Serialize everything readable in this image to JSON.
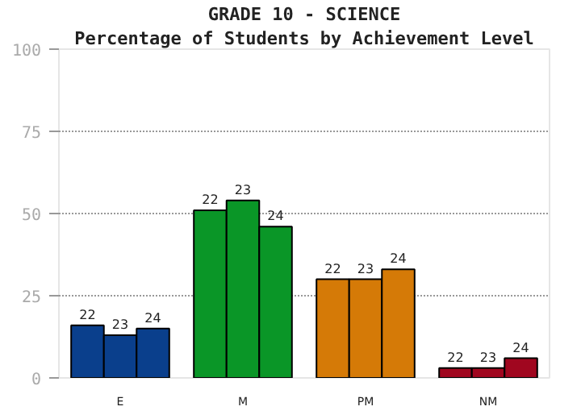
{
  "chart_data": {
    "type": "bar",
    "title": "GRADE 10 - SCIENCE",
    "subtitle": "Percentage of Students by Achievement Level",
    "categories": [
      "E",
      "M",
      "PM",
      "NM"
    ],
    "series": [
      {
        "name": "22",
        "colors": [
          "#0a3f8c",
          "#0a9627",
          "#d57a07",
          "#a0061f"
        ],
        "values": [
          16,
          51,
          30,
          3
        ]
      },
      {
        "name": "23",
        "colors": [
          "#0a3f8c",
          "#0a9627",
          "#d57a07",
          "#a0061f"
        ],
        "values": [
          13,
          54,
          30,
          3
        ]
      },
      {
        "name": "24",
        "colors": [
          "#0a3f8c",
          "#0a9627",
          "#d57a07",
          "#a0061f"
        ],
        "values": [
          15,
          46,
          33,
          6
        ]
      }
    ],
    "ylim": [
      0,
      100
    ],
    "yticks": [
      0,
      25,
      50,
      75,
      100
    ],
    "grid": "y"
  }
}
